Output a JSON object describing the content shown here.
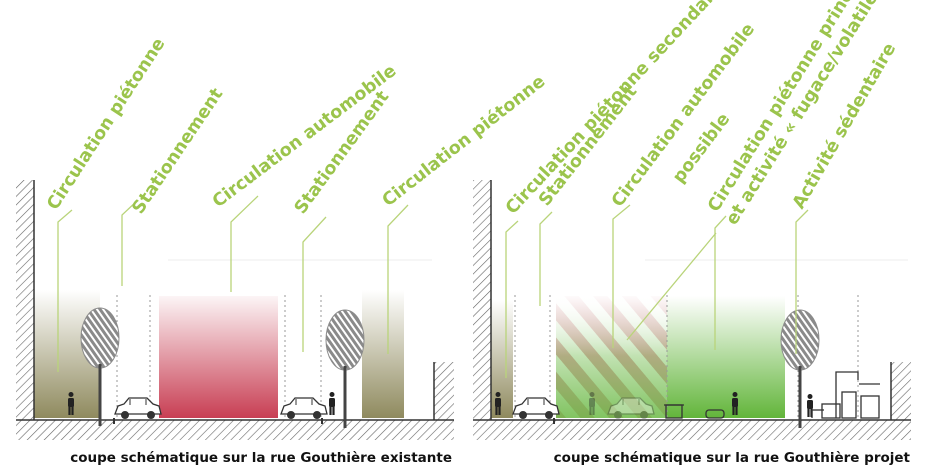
{
  "colors": {
    "label_green": "#9bc44c",
    "leader_green": "#b9d47a",
    "sidewalk_olive": "#8f8a5e",
    "road_red": "#c5344a",
    "project_green": "#62b53a",
    "hatch_pink": "#e2a7b0",
    "ground": "#444444",
    "tree_grey": "#8a8a8a"
  },
  "existing": {
    "caption": "coupe schématique sur la rue Gouthière existante",
    "labels": [
      "Circulation piétonne",
      "Stationnement",
      "Circulation automobile",
      "Stationnement",
      "Circulation piétonne"
    ]
  },
  "project": {
    "caption": "coupe schématique sur la rue Gouthière projet",
    "labels": [
      "Circulation piétonne secondaire",
      "Stationnement",
      "Circulation automobile",
      "possible",
      "Circulation piétonne principale",
      "et activité « fugace/volatile »",
      "Activité sédentaire"
    ]
  }
}
